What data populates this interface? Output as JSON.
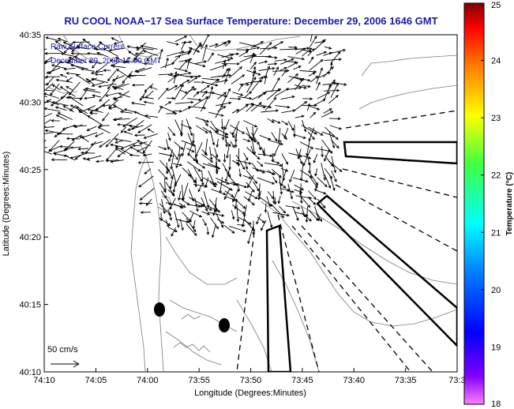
{
  "chart_data": {
    "type": "vector-field-map",
    "title": "RU COOL  NOAA−17  Sea Surface Temperature:  December 29, 2006 1646 GMT",
    "xlabel": "Longitude (Degrees:Minutes)",
    "ylabel": "Latitude (Degrees:Minutes)",
    "x_ticks": [
      "74:10",
      "74:05",
      "74:00",
      "73:55",
      "73:50",
      "73:45",
      "73:40",
      "73:35",
      "73:3"
    ],
    "x_tick_values": [
      -74.1667,
      -74.0833,
      -74.0,
      -73.9167,
      -73.8333,
      -73.75,
      -73.6667,
      -73.5833,
      -73.5
    ],
    "y_ticks": [
      "40:35",
      "40:30",
      "40:25",
      "40:20",
      "40:15",
      "40:10"
    ],
    "y_tick_values": [
      40.5833,
      40.5,
      40.4167,
      40.3333,
      40.25,
      40.1667
    ],
    "xlim": [
      -74.1667,
      -73.5
    ],
    "ylim": [
      40.1667,
      40.5833
    ],
    "annotation_line1": "Raw Surface Current",
    "annotation_line2": "December 29, 2006 17:00 GMT",
    "scale_label": "50 cm/s",
    "colorbar": {
      "label": "Temperature (°C)",
      "min": 18,
      "max": 25,
      "ticks": [
        "25",
        "24",
        "23",
        "22",
        "21",
        "20",
        "19",
        "18"
      ]
    },
    "colors": {
      "title": "#1a1aa8",
      "land_outline": "#7a7a7a",
      "arrows": "#000000"
    }
  }
}
